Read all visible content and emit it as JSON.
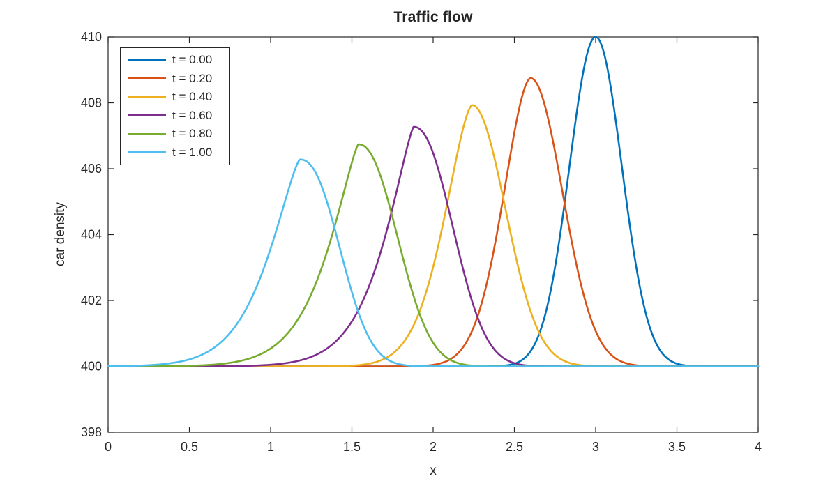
{
  "figure": {
    "background": "#ffffff",
    "axis_color": "#262626",
    "text_color": "#262626"
  },
  "chart_data": {
    "type": "line",
    "title": "Traffic flow",
    "xlabel": "x",
    "ylabel": "car density",
    "xlim": [
      0,
      4
    ],
    "ylim": [
      398,
      410
    ],
    "grid": false,
    "legend_position": "top-left",
    "baseline_y": 400,
    "xticks": {
      "values": [
        0,
        0.5,
        1,
        1.5,
        2,
        2.5,
        3,
        3.5,
        4
      ],
      "labels": [
        "0",
        "0.5",
        "1",
        "1.5",
        "2",
        "2.5",
        "3",
        "3.5",
        "4"
      ]
    },
    "yticks": {
      "values": [
        398,
        400,
        402,
        404,
        406,
        408,
        410
      ],
      "labels": [
        "398",
        "400",
        "402",
        "404",
        "406",
        "408",
        "410"
      ]
    },
    "series": [
      {
        "label": "t = 0.00",
        "t": 0.0,
        "color": "#0072BD",
        "peak_x": 3.0,
        "peak_y": 410.0,
        "base_y": 400,
        "half_width_left": 0.19,
        "half_width_right": 0.19,
        "shape_exp_left": 2.0,
        "shape_exp_right": 2.0
      },
      {
        "label": "t = 0.20",
        "t": 0.2,
        "color": "#D95319",
        "peak_x": 2.6,
        "peak_y": 408.75,
        "base_y": 400,
        "half_width_left": 0.195,
        "half_width_right": 0.23,
        "shape_exp_left": 1.8,
        "shape_exp_right": 2.0
      },
      {
        "label": "t = 0.40",
        "t": 0.4,
        "color": "#EDB120",
        "peak_x": 2.24,
        "peak_y": 407.93,
        "base_y": 400,
        "half_width_left": 0.195,
        "half_width_right": 0.24,
        "shape_exp_left": 1.6,
        "shape_exp_right": 2.0
      },
      {
        "label": "t = 0.60",
        "t": 0.6,
        "color": "#7E2F8E",
        "peak_x": 1.88,
        "peak_y": 407.27,
        "base_y": 400,
        "half_width_left": 0.193,
        "half_width_right": 0.27,
        "shape_exp_left": 1.3,
        "shape_exp_right": 2.2
      },
      {
        "label": "t = 0.80",
        "t": 0.8,
        "color": "#77AC30",
        "peak_x": 1.54,
        "peak_y": 406.74,
        "base_y": 400,
        "half_width_left": 0.2,
        "half_width_right": 0.27,
        "shape_exp_left": 1.3,
        "shape_exp_right": 2.2
      },
      {
        "label": "t = 1.00",
        "t": 1.0,
        "color": "#4DBEEE",
        "peak_x": 1.18,
        "peak_y": 406.28,
        "base_y": 400,
        "half_width_left": 0.21,
        "half_width_right": 0.27,
        "shape_exp_left": 1.35,
        "shape_exp_right": 2.3
      }
    ]
  }
}
